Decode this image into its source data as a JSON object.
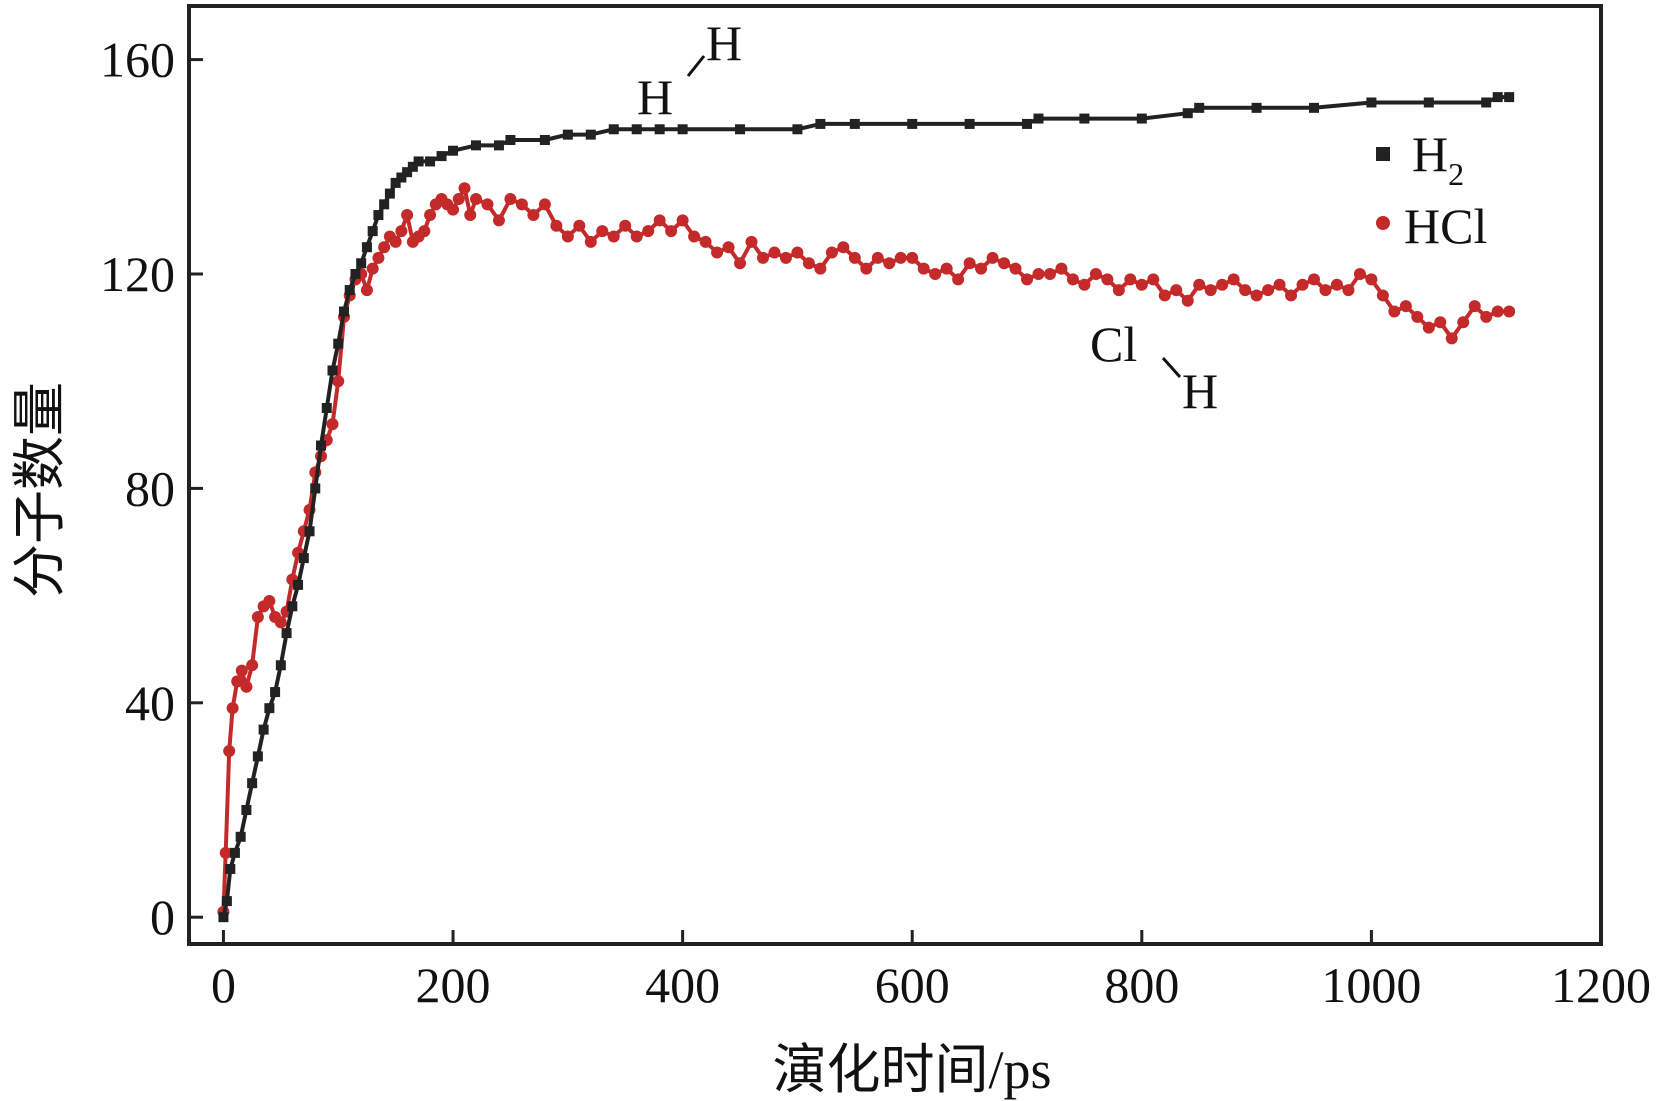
{
  "chart_data": {
    "type": "line",
    "title": "",
    "xlabel": "演化时间/ps",
    "ylabel": "分子数量",
    "xlim": [
      -30,
      1200
    ],
    "ylim": [
      -5,
      170
    ],
    "xticks": [
      0,
      200,
      400,
      600,
      800,
      1000,
      1200
    ],
    "yticks": [
      0,
      40,
      80,
      120,
      160
    ],
    "xtick_labels": [
      "0",
      "200",
      "400",
      "600",
      "800",
      "1000",
      "1200"
    ],
    "ytick_labels": [
      "0",
      "40",
      "80",
      "120",
      "160"
    ],
    "grid": false,
    "legend_position": "top-right",
    "colors": {
      "H2": "#222222",
      "HCl": "#c42a2a"
    },
    "series": [
      {
        "name": "H2",
        "legend_label": "H",
        "legend_subscript": "2",
        "marker": "square",
        "x": [
          0,
          3,
          6,
          10,
          15,
          20,
          25,
          30,
          35,
          40,
          45,
          50,
          55,
          60,
          65,
          70,
          75,
          80,
          85,
          90,
          95,
          100,
          105,
          110,
          115,
          120,
          125,
          130,
          135,
          140,
          145,
          150,
          155,
          160,
          165,
          170,
          180,
          190,
          200,
          220,
          240,
          250,
          280,
          300,
          320,
          340,
          360,
          380,
          400,
          450,
          500,
          520,
          550,
          600,
          650,
          700,
          710,
          750,
          800,
          840,
          850,
          900,
          950,
          1000,
          1050,
          1100,
          1110,
          1120
        ],
        "y": [
          0,
          3,
          9,
          12,
          15,
          20,
          25,
          30,
          35,
          39,
          42,
          47,
          53,
          58,
          62,
          67,
          72,
          80,
          88,
          95,
          102,
          107,
          113,
          117,
          120,
          122,
          125,
          128,
          131,
          133,
          135,
          137,
          138,
          139,
          140,
          141,
          141,
          142,
          143,
          144,
          144,
          145,
          145,
          146,
          146,
          147,
          147,
          147,
          147,
          147,
          147,
          148,
          148,
          148,
          148,
          148,
          149,
          149,
          149,
          150,
          151,
          151,
          151,
          152,
          152,
          152,
          153,
          153
        ]
      },
      {
        "name": "HCl",
        "legend_label": "HCl",
        "marker": "circle",
        "x": [
          0,
          2,
          5,
          8,
          12,
          16,
          20,
          25,
          30,
          35,
          40,
          45,
          50,
          55,
          60,
          65,
          70,
          75,
          80,
          85,
          90,
          95,
          100,
          105,
          110,
          115,
          120,
          125,
          130,
          135,
          140,
          145,
          150,
          155,
          160,
          165,
          170,
          175,
          180,
          185,
          190,
          195,
          200,
          205,
          210,
          215,
          220,
          230,
          240,
          250,
          260,
          270,
          280,
          290,
          300,
          310,
          320,
          330,
          340,
          350,
          360,
          370,
          380,
          390,
          400,
          410,
          420,
          430,
          440,
          450,
          460,
          470,
          480,
          490,
          500,
          510,
          520,
          530,
          540,
          550,
          560,
          570,
          580,
          590,
          600,
          610,
          620,
          630,
          640,
          650,
          660,
          670,
          680,
          690,
          700,
          710,
          720,
          730,
          740,
          750,
          760,
          770,
          780,
          790,
          800,
          810,
          820,
          830,
          840,
          850,
          860,
          870,
          880,
          890,
          900,
          910,
          920,
          930,
          940,
          950,
          960,
          970,
          980,
          990,
          1000,
          1010,
          1020,
          1030,
          1040,
          1050,
          1060,
          1070,
          1080,
          1090,
          1100,
          1110,
          1120
        ],
        "y": [
          1,
          12,
          31,
          39,
          44,
          46,
          43,
          47,
          56,
          58,
          59,
          56,
          55,
          57,
          63,
          68,
          72,
          76,
          83,
          86,
          89,
          92,
          100,
          112,
          116,
          119,
          120,
          117,
          121,
          123,
          125,
          127,
          126,
          128,
          131,
          126,
          127,
          128,
          131,
          133,
          134,
          133,
          132,
          134,
          136,
          131,
          134,
          133,
          130,
          134,
          133,
          131,
          133,
          129,
          127,
          129,
          126,
          128,
          127,
          129,
          127,
          128,
          130,
          128,
          130,
          127,
          126,
          124,
          125,
          122,
          126,
          123,
          124,
          123,
          124,
          122,
          121,
          124,
          125,
          123,
          121,
          123,
          122,
          123,
          123,
          121,
          120,
          121,
          119,
          122,
          121,
          123,
          122,
          121,
          119,
          120,
          120,
          121,
          119,
          118,
          120,
          119,
          117,
          119,
          118,
          119,
          116,
          117,
          115,
          118,
          117,
          118,
          119,
          117,
          116,
          117,
          118,
          116,
          118,
          119,
          117,
          118,
          117,
          120,
          119,
          116,
          113,
          114,
          112,
          110,
          111,
          108,
          111,
          114,
          112,
          113,
          113
        ]
      }
    ],
    "annotations": [
      {
        "label": "H2-molecule-diagram",
        "atom1": "H",
        "atom2": "H"
      },
      {
        "label": "HCl-molecule-diagram",
        "atom1": "Cl",
        "atom2": "H"
      }
    ]
  }
}
